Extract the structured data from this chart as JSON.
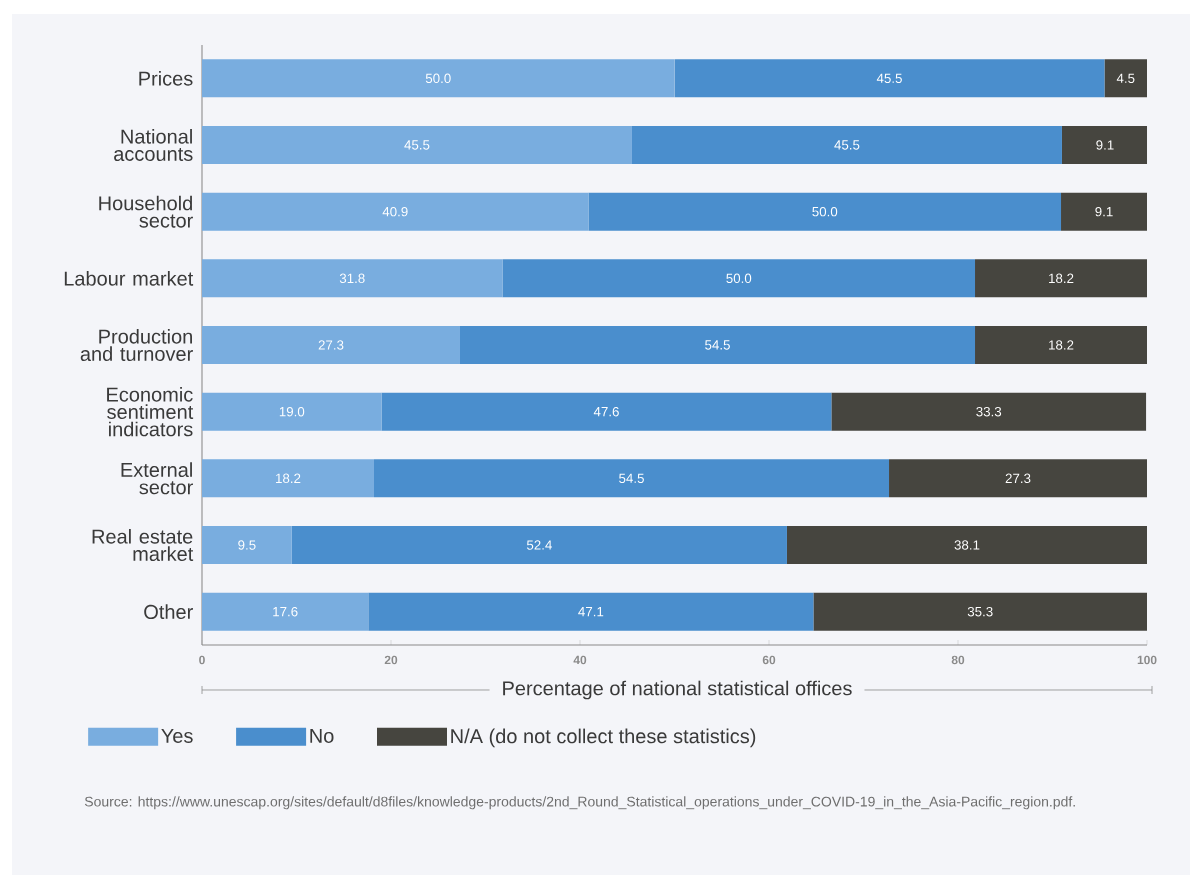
{
  "chart_data": {
    "type": "bar",
    "orientation": "horizontal",
    "stacked": true,
    "categories": [
      "Prices",
      "National accounts",
      "Household sector",
      "Labour market",
      "Production and turnover",
      "Economic sentiment indicators",
      "External sector",
      "Real estate market",
      "Other"
    ],
    "series": [
      {
        "name": "Yes",
        "color": "#79addf",
        "values": [
          50.0,
          45.5,
          40.9,
          31.8,
          27.3,
          19.0,
          18.2,
          9.5,
          17.6
        ],
        "value_labels": [
          "50.0",
          "45.5",
          "40.9",
          "31.8",
          "27.3",
          "19.0",
          "18.2",
          "9.5",
          "17.6"
        ]
      },
      {
        "name": "No",
        "color": "#4a8ecd",
        "values": [
          45.5,
          45.5,
          50.0,
          50.0,
          54.5,
          47.6,
          54.5,
          52.4,
          47.1
        ],
        "value_labels": [
          "45.5",
          "45.5",
          "50.0",
          "50.0",
          "54.5",
          "47.6",
          "54.5",
          "52.4",
          "47.1"
        ]
      },
      {
        "name": "N/A (do not collect these statistics)",
        "color": "#46453f",
        "values": [
          4.5,
          9.1,
          9.1,
          18.2,
          18.2,
          33.3,
          27.3,
          38.1,
          35.3
        ],
        "value_labels": [
          "4.5",
          "9.1",
          "9.1",
          "18.2",
          "18.2",
          "33.3",
          "27.3",
          "38.1",
          "35.3"
        ]
      }
    ],
    "xlim": [
      0,
      100
    ],
    "xticks": [
      0,
      20,
      40,
      60,
      80,
      100
    ],
    "xlabel": "Percentage of national statistical offices",
    "legend": "bottom",
    "annotations": [
      "Source: https://www.unescap.org/sites/default/d8files/knowledge-products/2nd_Round_Statistical_operations_under_COVID-19_in_the_Asia-Pacific_region.pdf."
    ]
  }
}
